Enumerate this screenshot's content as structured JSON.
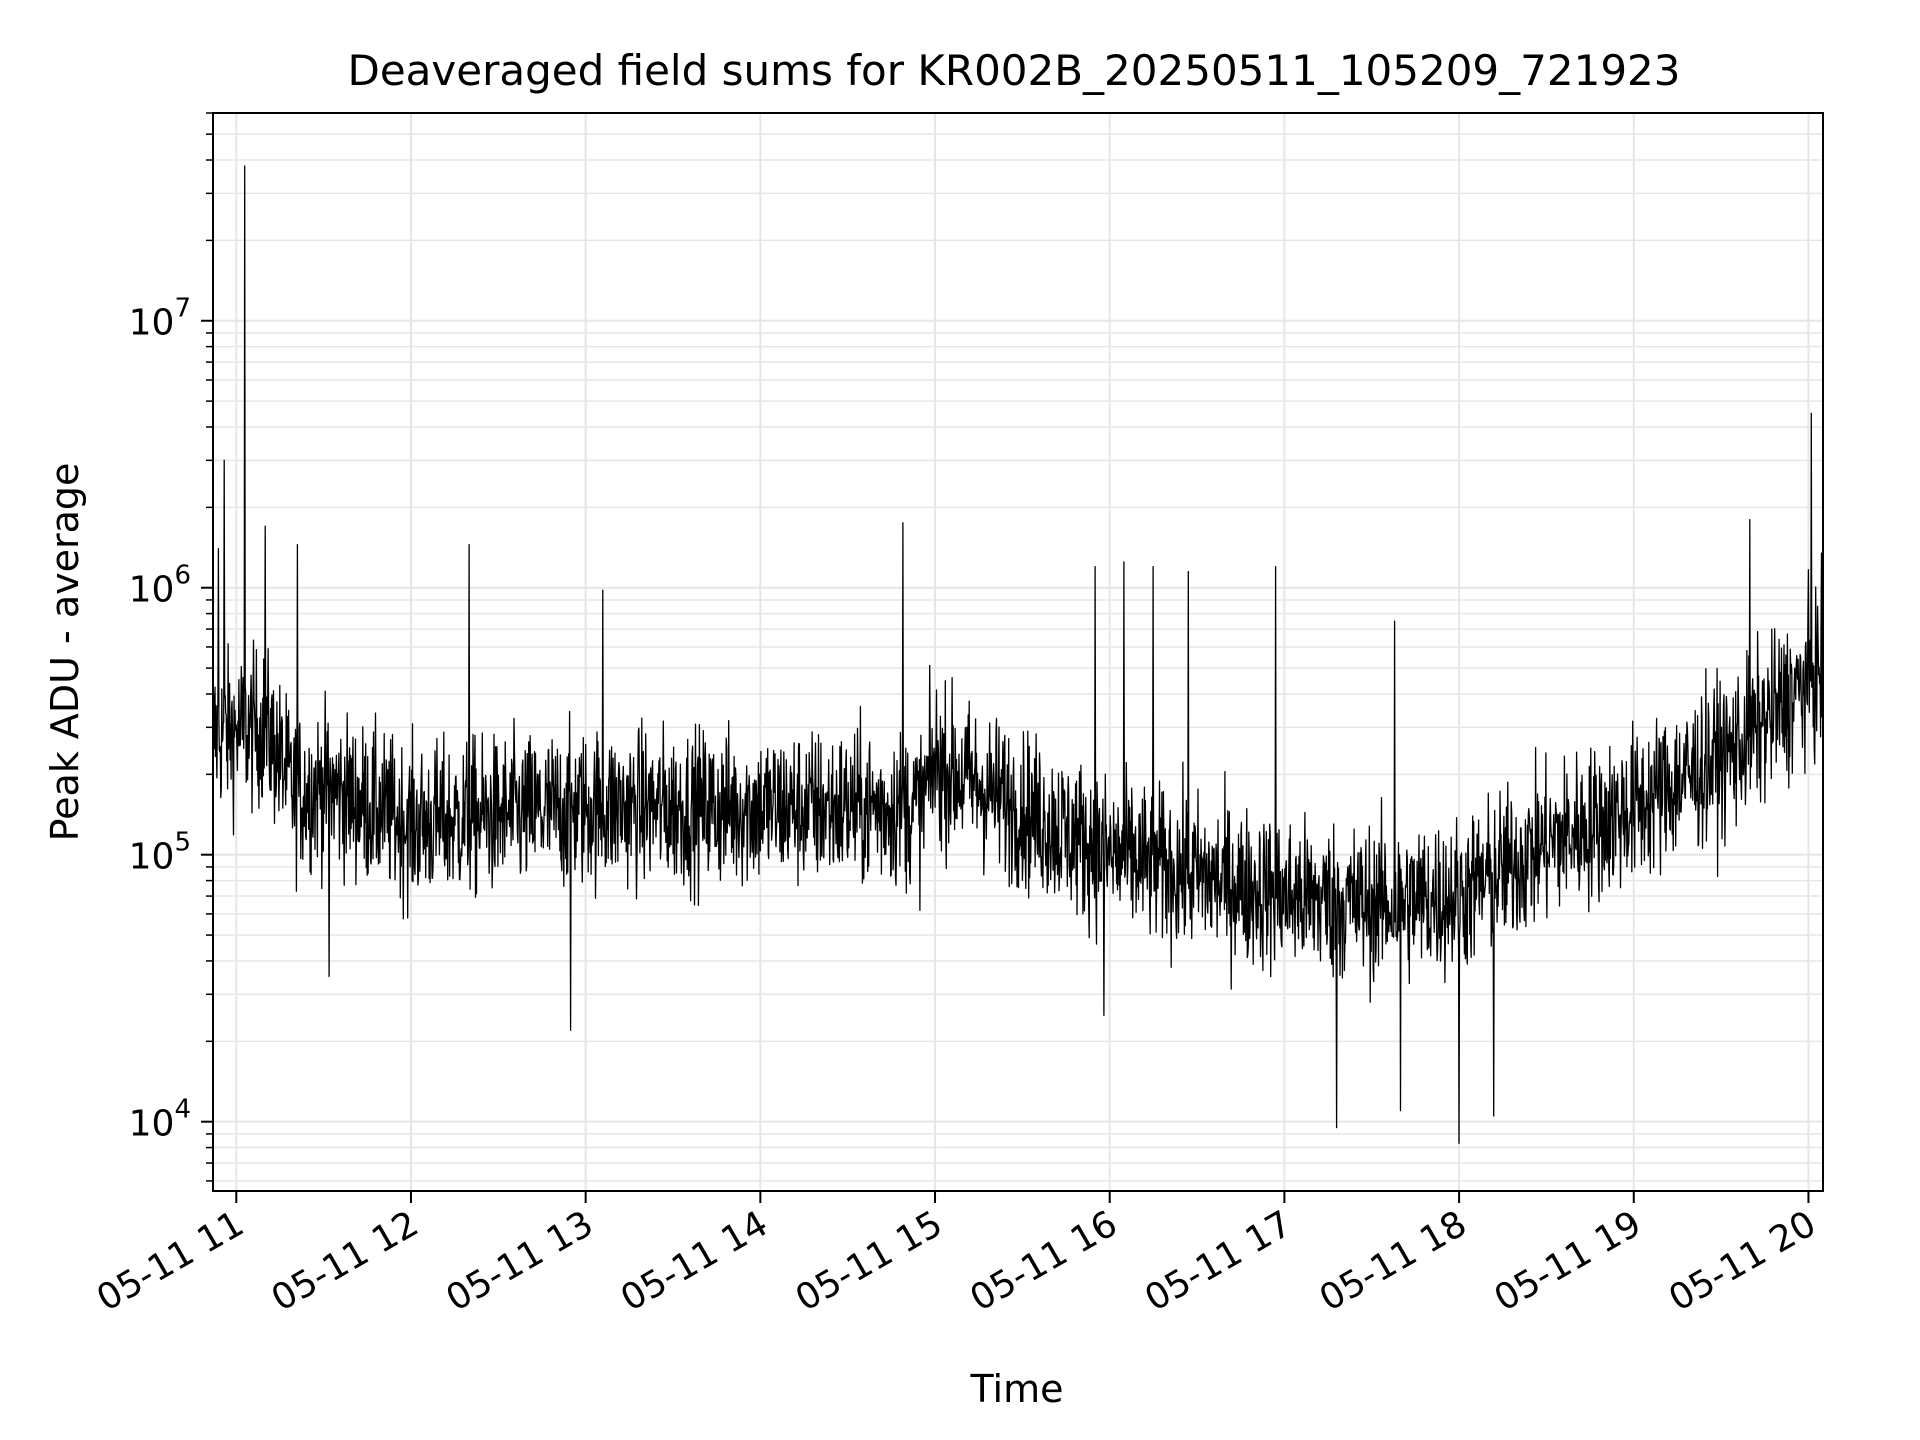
{
  "chart_data": {
    "type": "line",
    "title": "Deaveraged field sums for KR002B_20250511_105209_721923",
    "xlabel": "Time",
    "ylabel": "Peak ADU - average",
    "yscale": "log",
    "ylim": [
      5500,
      60000000
    ],
    "xlim": [
      "2025-05-11 10:52",
      "2025-05-11 20:05"
    ],
    "grid": true,
    "line_color": "#000000",
    "grid_color": "#e6e6e6",
    "x_ticks": [
      {
        "value": "2025-05-11 11:00",
        "label": "05-11 11"
      },
      {
        "value": "2025-05-11 12:00",
        "label": "05-11 12"
      },
      {
        "value": "2025-05-11 13:00",
        "label": "05-11 13"
      },
      {
        "value": "2025-05-11 14:00",
        "label": "05-11 14"
      },
      {
        "value": "2025-05-11 15:00",
        "label": "05-11 15"
      },
      {
        "value": "2025-05-11 16:00",
        "label": "05-11 16"
      },
      {
        "value": "2025-05-11 17:00",
        "label": "05-11 17"
      },
      {
        "value": "2025-05-11 18:00",
        "label": "05-11 18"
      },
      {
        "value": "2025-05-11 19:00",
        "label": "05-11 19"
      },
      {
        "value": "2025-05-11 20:00",
        "label": "05-11 20"
      }
    ],
    "y_ticks": [
      {
        "value": 10000,
        "base": "10",
        "exp": "4"
      },
      {
        "value": 100000,
        "base": "10",
        "exp": "5"
      },
      {
        "value": 1000000,
        "base": "10",
        "exp": "6"
      },
      {
        "value": 10000000,
        "base": "10",
        "exp": "7"
      }
    ],
    "series_trend": {
      "x": [
        "2025-05-11 10:52",
        "2025-05-11 11:10",
        "2025-05-11 11:20",
        "2025-05-11 11:30",
        "2025-05-11 12:00",
        "2025-05-11 13:00",
        "2025-05-11 14:00",
        "2025-05-11 14:55",
        "2025-05-11 15:00",
        "2025-05-11 16:00",
        "2025-05-11 17:00",
        "2025-05-11 17:30",
        "2025-05-11 18:00",
        "2025-05-11 18:30",
        "2025-05-11 19:00",
        "2025-05-11 19:35",
        "2025-05-11 20:05"
      ],
      "y": [
        280000,
        300000,
        170000,
        180000,
        130000,
        150000,
        150000,
        150000,
        220000,
        100000,
        70000,
        65000,
        70000,
        110000,
        150000,
        250000,
        500000
      ]
    },
    "series_spikes": {
      "x": [
        "2025-05-11 10:54",
        "2025-05-11 10:56",
        "2025-05-11 11:03",
        "2025-05-11 11:10",
        "2025-05-11 11:21",
        "2025-05-11 12:20",
        "2025-05-11 13:06",
        "2025-05-11 14:49",
        "2025-05-11 15:55",
        "2025-05-11 16:05",
        "2025-05-11 16:15",
        "2025-05-11 16:27",
        "2025-05-11 16:57",
        "2025-05-11 17:38",
        "2025-05-11 19:40",
        "2025-05-11 20:01",
        "2025-05-11 11:32",
        "2025-05-11 12:55",
        "2025-05-11 15:58",
        "2025-05-11 17:18",
        "2025-05-11 18:00",
        "2025-05-11 18:12",
        "2025-05-11 17:40"
      ],
      "y": [
        1400000,
        3000000,
        38000000,
        1700000,
        1450000,
        1450000,
        980000,
        1750000,
        1200000,
        1250000,
        1200000,
        1150000,
        1200000,
        750000,
        1800000,
        4500000,
        35000,
        22000,
        25000,
        9500,
        8300,
        10500,
        11000
      ]
    }
  }
}
